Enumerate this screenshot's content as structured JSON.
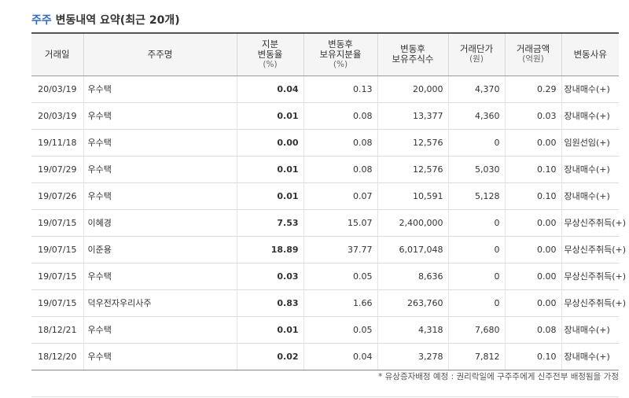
{
  "title": {
    "highlight": "주주",
    "text": " 변동내역 요약",
    "suffix": "(최근 20개)"
  },
  "columns": [
    {
      "lines": [
        "거래일"
      ],
      "unit": ""
    },
    {
      "lines": [
        "주주명"
      ],
      "unit": ""
    },
    {
      "lines": [
        "지분",
        "변동율"
      ],
      "unit": "(%)"
    },
    {
      "lines": [
        "변동후",
        "보유지분율"
      ],
      "unit": "(%)"
    },
    {
      "lines": [
        "변동후",
        "보유주식수"
      ],
      "unit": ""
    },
    {
      "lines": [
        "거래단가"
      ],
      "unit": "(원)"
    },
    {
      "lines": [
        "거래금액"
      ],
      "unit": "(억원)"
    },
    {
      "lines": [
        "변동사유"
      ],
      "unit": ""
    }
  ],
  "rows": [
    {
      "date": "20/03/19",
      "name": "우수택",
      "change": "0.04",
      "ratio": "0.13",
      "shares": "20,000",
      "price": "4,370",
      "amount": "0.29",
      "reason": "장내매수(+)"
    },
    {
      "date": "20/03/19",
      "name": "우수택",
      "change": "0.01",
      "ratio": "0.08",
      "shares": "13,377",
      "price": "4,360",
      "amount": "0.03",
      "reason": "장내매수(+)"
    },
    {
      "date": "19/11/18",
      "name": "우수택",
      "change": "0.00",
      "ratio": "0.08",
      "shares": "12,576",
      "price": "0",
      "amount": "0.00",
      "reason": "임원선임(+)"
    },
    {
      "date": "19/07/29",
      "name": "우수택",
      "change": "0.01",
      "ratio": "0.08",
      "shares": "12,576",
      "price": "5,030",
      "amount": "0.10",
      "reason": "장내매수(+)"
    },
    {
      "date": "19/07/26",
      "name": "우수택",
      "change": "0.01",
      "ratio": "0.07",
      "shares": "10,591",
      "price": "5,128",
      "amount": "0.10",
      "reason": "장내매수(+)"
    },
    {
      "date": "19/07/15",
      "name": "이혜경",
      "change": "7.53",
      "ratio": "15.07",
      "shares": "2,400,000",
      "price": "0",
      "amount": "0.00",
      "reason": "무상신주취득(+)"
    },
    {
      "date": "19/07/15",
      "name": "이준용",
      "change": "18.89",
      "ratio": "37.77",
      "shares": "6,017,048",
      "price": "0",
      "amount": "0.00",
      "reason": "무상신주취득(+)"
    },
    {
      "date": "19/07/15",
      "name": "우수택",
      "change": "0.03",
      "ratio": "0.05",
      "shares": "8,636",
      "price": "0",
      "amount": "0.00",
      "reason": "무상신주취득(+)"
    },
    {
      "date": "19/07/15",
      "name": "덕우전자우리사주",
      "change": "0.83",
      "ratio": "1.66",
      "shares": "263,760",
      "price": "0",
      "amount": "0.00",
      "reason": "무상신주취득(+)"
    },
    {
      "date": "18/12/21",
      "name": "우수택",
      "change": "0.01",
      "ratio": "0.05",
      "shares": "4,318",
      "price": "7,680",
      "amount": "0.08",
      "reason": "장내매수(+)"
    },
    {
      "date": "18/12/20",
      "name": "우수택",
      "change": "0.02",
      "ratio": "0.04",
      "shares": "3,278",
      "price": "7,812",
      "amount": "0.10",
      "reason": "장내매수(+)"
    }
  ],
  "note": "* 유상증자배정 예정 : 권리락일에 구주주에게 신주전부 배정됨을 가정"
}
